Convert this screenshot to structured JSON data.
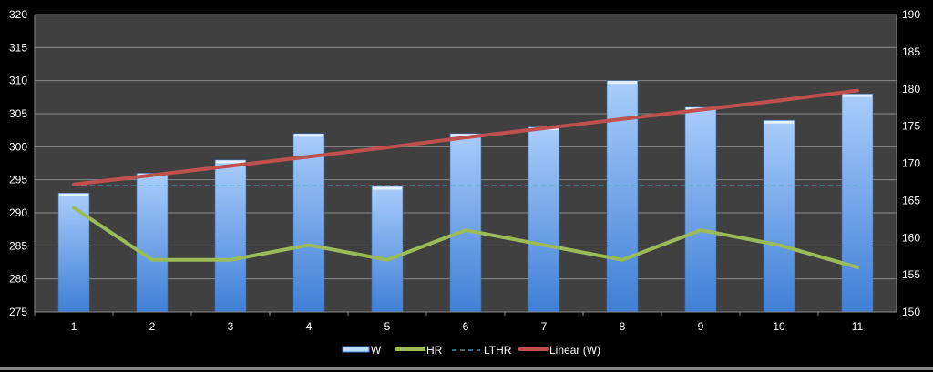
{
  "chart_data": {
    "type": "bar",
    "title": "",
    "xlabel": "",
    "ylabel": "",
    "categories": [
      "1",
      "2",
      "3",
      "4",
      "5",
      "6",
      "7",
      "8",
      "9",
      "10",
      "11"
    ],
    "ylim": [
      275,
      320
    ],
    "y2lim": [
      150,
      190
    ],
    "yticks": [
      "275",
      "280",
      "285",
      "290",
      "295",
      "300",
      "305",
      "310",
      "315",
      "320"
    ],
    "y2ticks": [
      "150",
      "155",
      "160",
      "165",
      "170",
      "175",
      "180",
      "185",
      "190"
    ],
    "grid": true,
    "legend_position": "bottom",
    "series": [
      {
        "name": "W",
        "type": "bar",
        "axis": "left",
        "color": "#7fb2f0",
        "values": [
          293,
          296,
          298,
          302,
          294,
          302,
          303,
          310,
          306,
          304,
          308
        ]
      },
      {
        "name": "HR",
        "type": "line",
        "axis": "right",
        "color": "#9bbb59",
        "values": [
          164,
          157,
          157,
          159,
          157,
          161,
          159,
          157,
          161,
          159,
          156
        ]
      },
      {
        "name": "LTHR",
        "type": "dashed-line",
        "axis": "right",
        "color": "#4bacc6",
        "values": [
          167,
          167,
          167,
          167,
          167,
          167,
          167,
          167,
          167,
          167,
          167
        ]
      },
      {
        "name": "Linear (W)",
        "type": "trendline",
        "axis": "left",
        "color": "#c0504d",
        "values": [
          294.3,
          295.7,
          297.1,
          298.5,
          299.9,
          301.4,
          302.8,
          304.2,
          305.6,
          307.0,
          308.5
        ]
      }
    ]
  }
}
